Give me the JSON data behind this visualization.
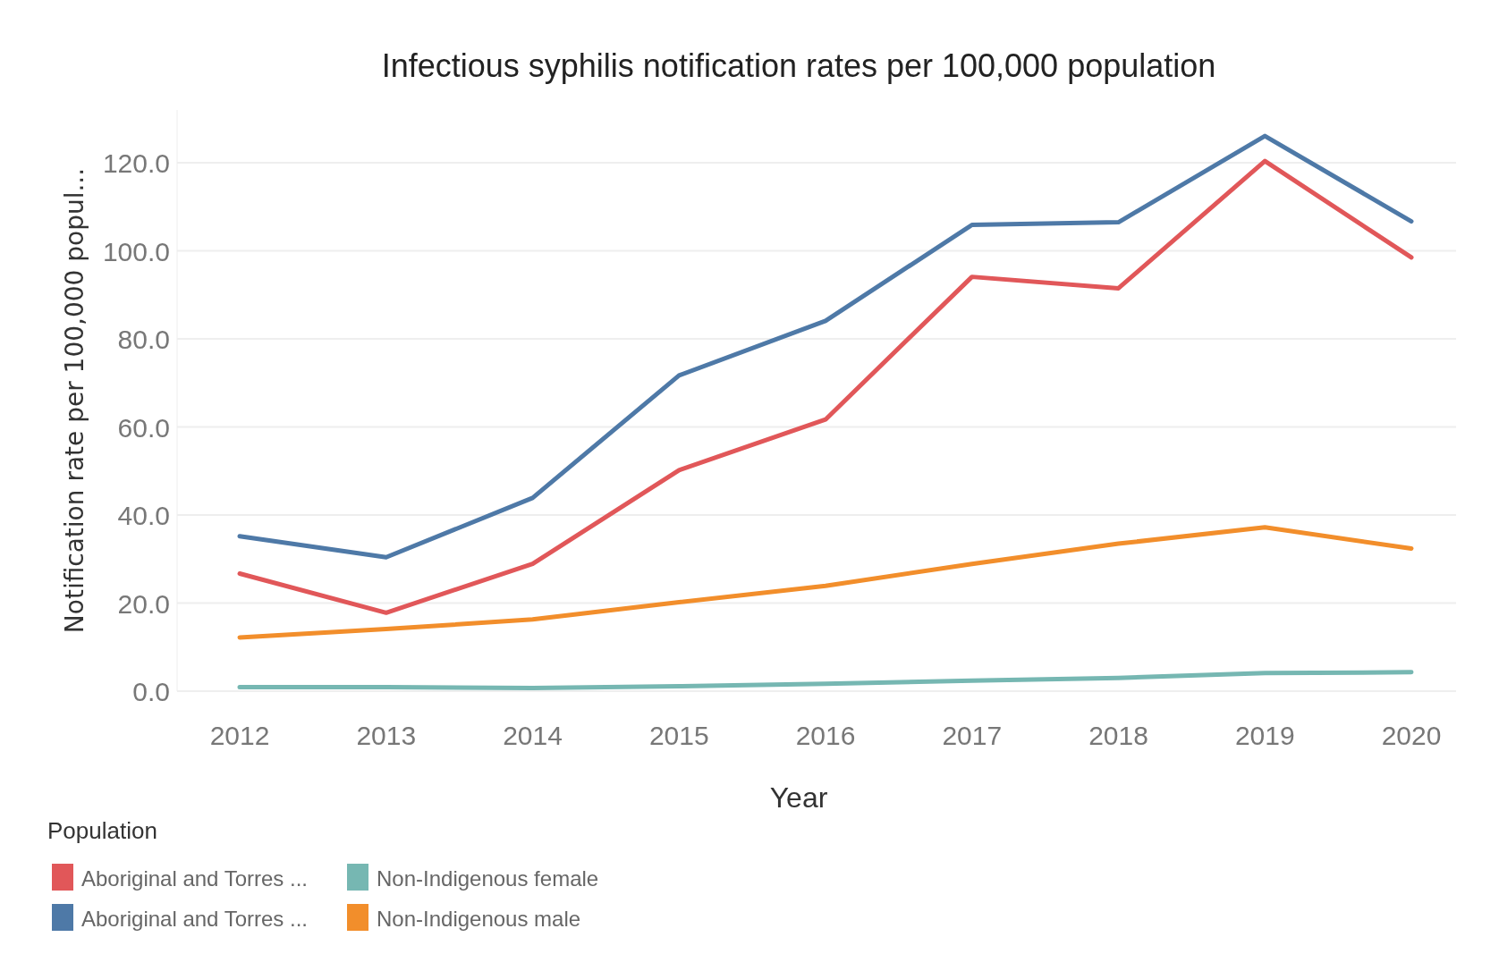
{
  "chart_data": {
    "type": "line",
    "title": "Infectious syphilis notification rates per 100,000 population",
    "xlabel": "Year",
    "ylabel": "Notification rate per 100,000 popul...",
    "legend_title": "Population",
    "categories": [
      "2012",
      "2013",
      "2014",
      "2015",
      "2016",
      "2017",
      "2018",
      "2019",
      "2020"
    ],
    "series": [
      {
        "name": "Aboriginal and Torres ...",
        "color": "#e15759",
        "values": [
          26.7,
          17.8,
          28.9,
          50.2,
          61.7,
          94.1,
          91.5,
          120.4,
          98.5
        ]
      },
      {
        "name": "Aboriginal and Torres ...",
        "color": "#4e79a7",
        "values": [
          35.2,
          30.4,
          43.9,
          71.7,
          84.1,
          105.9,
          106.5,
          126.1,
          106.7
        ]
      },
      {
        "name": "Non-Indigenous female",
        "color": "#76b7b2",
        "values": [
          0.9,
          0.9,
          0.7,
          1.1,
          1.7,
          2.4,
          3.0,
          4.1,
          4.3
        ]
      },
      {
        "name": "Non-Indigenous male",
        "color": "#f28e2b",
        "values": [
          12.2,
          14.1,
          16.3,
          20.2,
          23.9,
          28.9,
          33.5,
          37.2,
          32.4
        ]
      }
    ],
    "ylim": [
      0,
      132
    ],
    "yticks": [
      {
        "value": 0,
        "label": "0.0"
      },
      {
        "value": 20,
        "label": "20.0"
      },
      {
        "value": 40,
        "label": "40.0"
      },
      {
        "value": 60,
        "label": "60.0"
      },
      {
        "value": 80,
        "label": "80.0"
      },
      {
        "value": 100,
        "label": "100.0"
      },
      {
        "value": 120,
        "label": "120.0"
      }
    ],
    "grid": "y",
    "legend": "bottom left",
    "marker": "none",
    "line_style": "solid"
  }
}
